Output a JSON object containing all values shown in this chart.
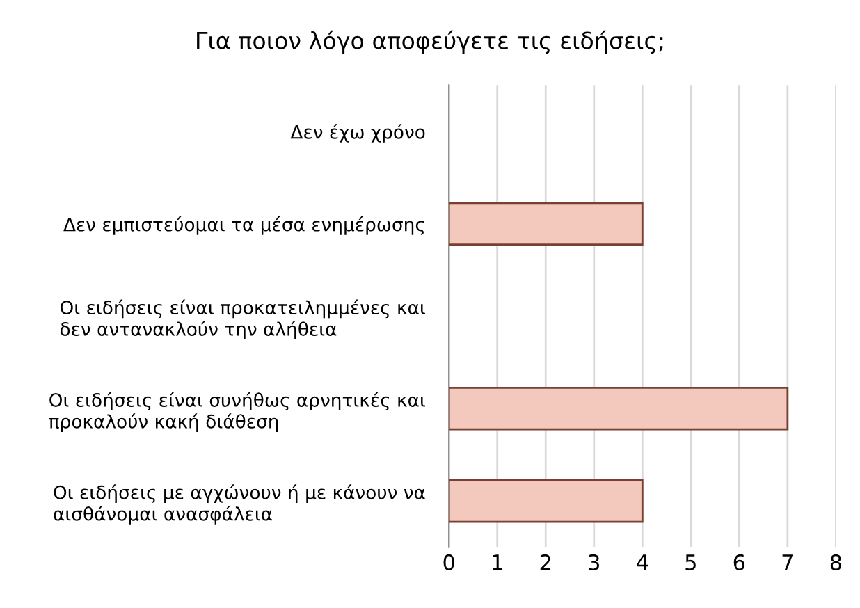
{
  "chart_data": {
    "type": "bar",
    "orientation": "horizontal",
    "title": "Για ποιον λόγο αποφεύγετε τις ειδήσεις;",
    "categories": [
      "Δεν έχω χρόνο",
      "Δεν εμπιστεύομαι τα μέσα ενημέρωσης",
      "Οι ειδήσεις είναι προκατειλημμένες και\nδεν αντανακλούν την αλήθεια",
      "Οι ειδήσεις είναι συνήθως αρνητικές και\nπροκαλούν κακή διάθεση",
      "Οι ειδήσεις με αγχώνουν ή με κάνουν να\nαισθάνομαι ανασφάλεια"
    ],
    "values": [
      0,
      4,
      0,
      7,
      4
    ],
    "color": "#f2c9bc",
    "xlim": [
      0,
      8
    ],
    "xticks": [
      0,
      1,
      2,
      3,
      4,
      5,
      6,
      7,
      8
    ],
    "grid": "x"
  }
}
